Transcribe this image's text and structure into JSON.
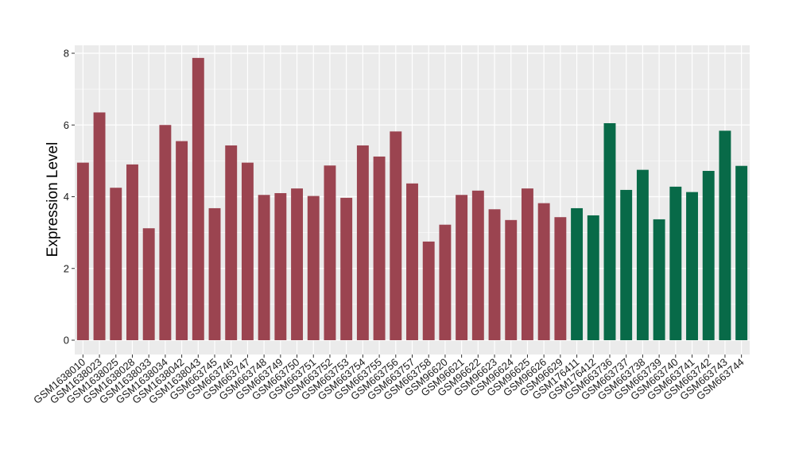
{
  "chart_data": {
    "type": "bar",
    "title": "",
    "xlabel": "",
    "ylabel": "Expression Level",
    "ylim": [
      0,
      8.2
    ],
    "yticks": [
      0,
      2,
      4,
      6,
      8
    ],
    "grid": true,
    "legend": "none",
    "colors": {
      "group_a": "#9b4450",
      "group_b": "#086a48",
      "panel_bg": "#ebebeb",
      "grid": "#ffffff"
    },
    "categories": [
      "GSM1638010",
      "GSM1638023",
      "GSM1638025",
      "GSM1638028",
      "GSM1638033",
      "GSM1638034",
      "GSM1638042",
      "GSM1638043",
      "GSM663745",
      "GSM663746",
      "GSM663747",
      "GSM663748",
      "GSM663749",
      "GSM663750",
      "GSM663751",
      "GSM663752",
      "GSM663753",
      "GSM663754",
      "GSM663755",
      "GSM663756",
      "GSM663757",
      "GSM663758",
      "GSM96620",
      "GSM96621",
      "GSM96622",
      "GSM96623",
      "GSM96624",
      "GSM96625",
      "GSM96626",
      "GSM96629",
      "GSM176411",
      "GSM176412",
      "GSM663736",
      "GSM663737",
      "GSM663738",
      "GSM663739",
      "GSM663740",
      "GSM663741",
      "GSM663742",
      "GSM663743",
      "GSM663744"
    ],
    "values": [
      4.95,
      6.35,
      4.25,
      4.9,
      3.12,
      6.0,
      5.55,
      7.87,
      3.68,
      5.43,
      4.95,
      4.05,
      4.1,
      4.23,
      4.02,
      4.87,
      3.97,
      5.43,
      5.12,
      5.82,
      4.37,
      2.75,
      3.22,
      4.05,
      4.17,
      3.65,
      3.35,
      4.23,
      3.82,
      3.43,
      3.68,
      3.48,
      6.05,
      4.19,
      4.75,
      3.37,
      4.28,
      4.13,
      4.72,
      5.84,
      4.86
    ],
    "groups": [
      "a",
      "a",
      "a",
      "a",
      "a",
      "a",
      "a",
      "a",
      "a",
      "a",
      "a",
      "a",
      "a",
      "a",
      "a",
      "a",
      "a",
      "a",
      "a",
      "a",
      "a",
      "a",
      "a",
      "a",
      "a",
      "a",
      "a",
      "a",
      "a",
      "a",
      "b",
      "b",
      "b",
      "b",
      "b",
      "b",
      "b",
      "b",
      "b",
      "b",
      "b"
    ]
  }
}
